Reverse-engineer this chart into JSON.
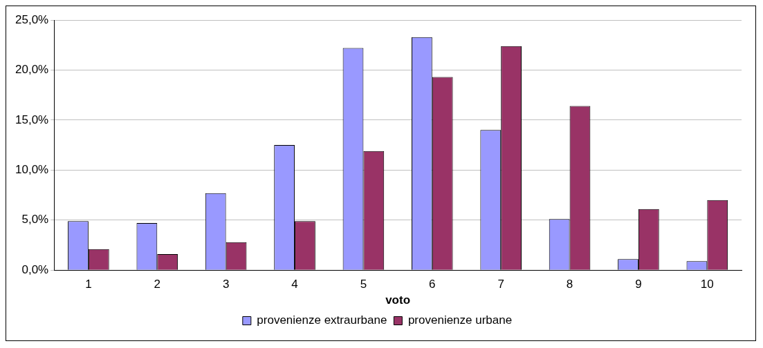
{
  "chart_data": {
    "type": "bar",
    "xlabel": "voto",
    "categories": [
      "1",
      "2",
      "3",
      "4",
      "5",
      "6",
      "7",
      "8",
      "9",
      "10"
    ],
    "series": [
      {
        "name": "provenienze extraurbane",
        "color": "#9999ff",
        "values": [
          4.9,
          4.7,
          7.7,
          12.5,
          22.2,
          23.3,
          14.0,
          5.1,
          1.1,
          0.9
        ]
      },
      {
        "name": "provenienze urbane",
        "color": "#993366",
        "values": [
          2.1,
          1.6,
          2.8,
          4.9,
          11.9,
          19.3,
          22.4,
          16.4,
          6.1,
          7.0
        ]
      }
    ],
    "ylim": [
      0,
      25
    ],
    "yticks": [
      {
        "value": 0,
        "label": "0,0%"
      },
      {
        "value": 5,
        "label": "5,0%"
      },
      {
        "value": 10,
        "label": "10,0%"
      },
      {
        "value": 15,
        "label": "15,0%"
      },
      {
        "value": 20,
        "label": "20,0%"
      },
      {
        "value": 25,
        "label": "25,0%"
      }
    ],
    "grid": "y",
    "legend": "bottom"
  }
}
